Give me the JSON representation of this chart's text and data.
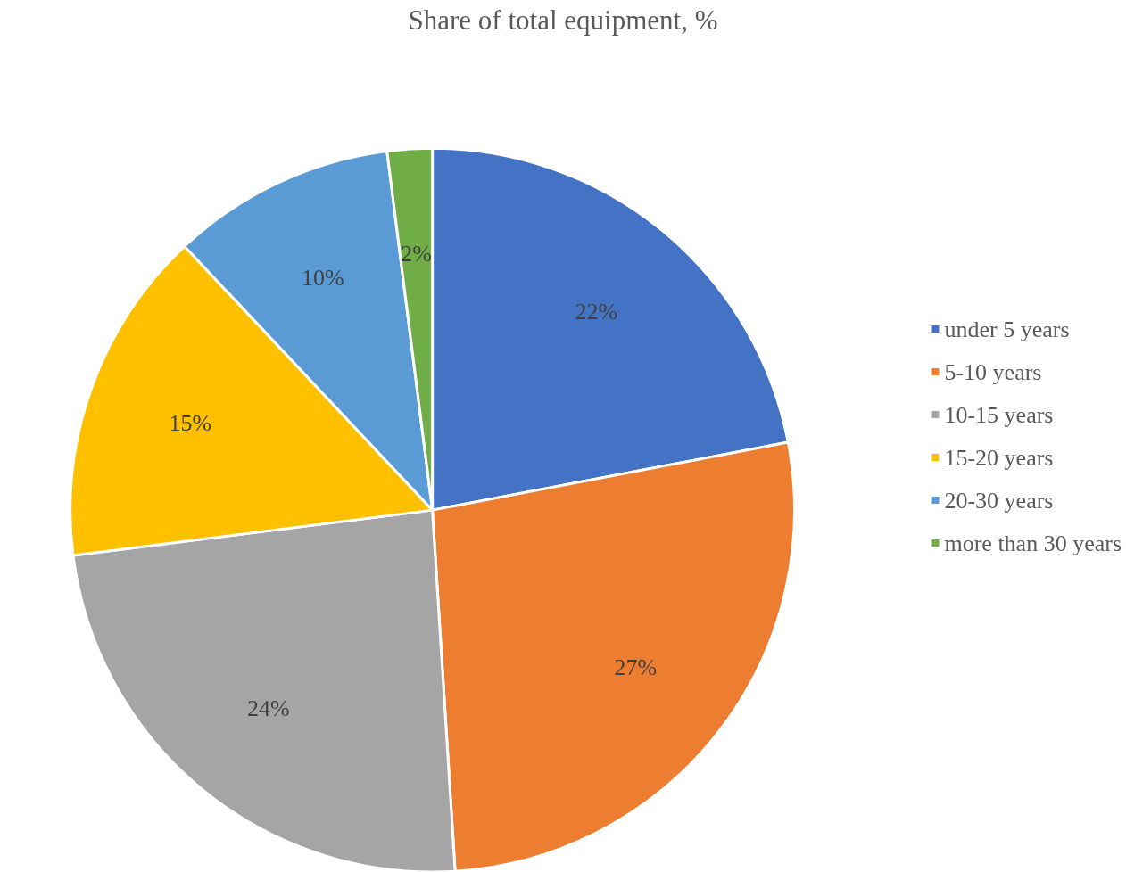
{
  "chart_data": {
    "type": "pie",
    "title": "Share of total equipment, %",
    "categories": [
      "under 5 years",
      "5-10 years",
      "10-15 years",
      "15-20 years",
      "20-30 years",
      "more than 30 years"
    ],
    "values": [
      22,
      27,
      24,
      15,
      10,
      2
    ],
    "colors": [
      "#4472c4",
      "#ed7d31",
      "#a5a5a5",
      "#ffc000",
      "#5b9bd5",
      "#70ad47"
    ],
    "value_labels": [
      "22%",
      "27%",
      "24%",
      "15%",
      "10%",
      "2%"
    ],
    "legend": "right"
  }
}
